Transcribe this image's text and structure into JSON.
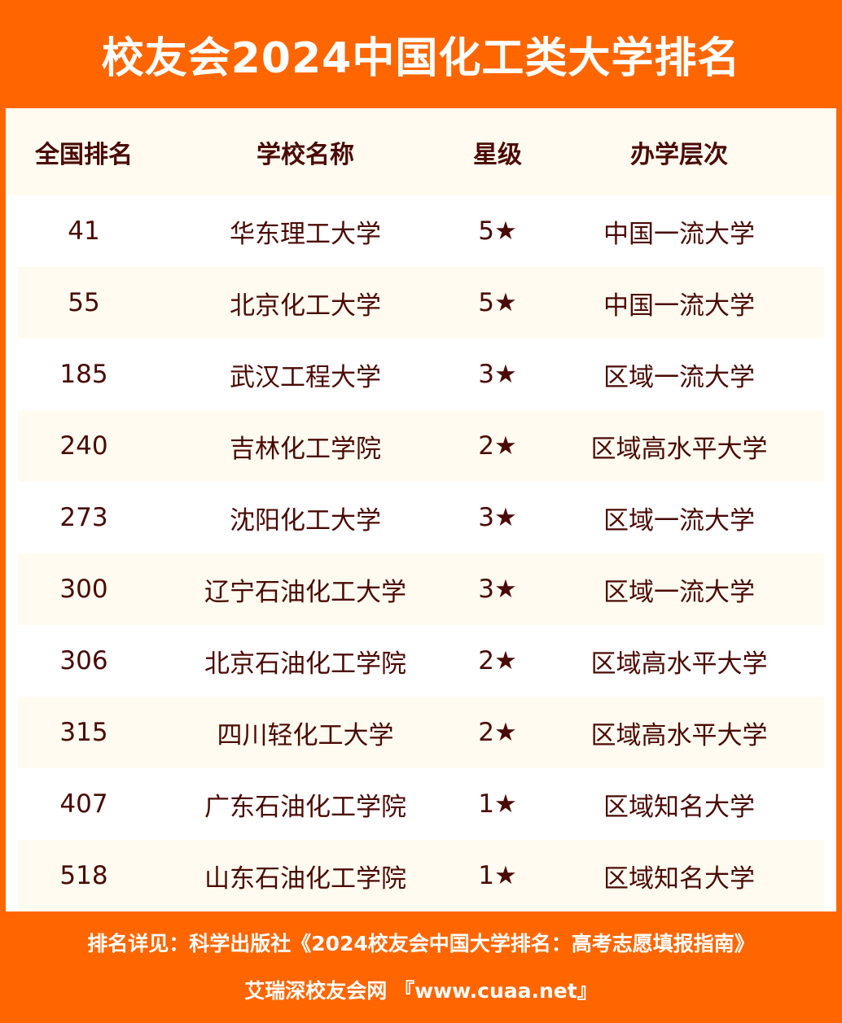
{
  "title": "校友会2024中国化工类大学排名",
  "headers": [
    "全国排名",
    "学校名称",
    "星级",
    "办学层次"
  ],
  "rows": [
    [
      "41",
      "华东理工大学",
      "5★",
      "中国一流大学"
    ],
    [
      "55",
      "北京化工大学",
      "5★",
      "中国一流大学"
    ],
    [
      "185",
      "武汉工程大学",
      "3★",
      "区域一流大学"
    ],
    [
      "240",
      "吉林化工学院",
      "2★",
      "区域高水平大学"
    ],
    [
      "273",
      "沈阳化工大学",
      "3★",
      "区域一流大学"
    ],
    [
      "300",
      "辽宁石油化工大学",
      "3★",
      "区域一流大学"
    ],
    [
      "306",
      "北京石油化工学院",
      "2★",
      "区域高水平大学"
    ],
    [
      "315",
      "四川轻化工大学",
      "2★",
      "区域高水平大学"
    ],
    [
      "407",
      "广东石油化工学院",
      "1★",
      "区域知名大学"
    ],
    [
      "518",
      "山东石油化工学院",
      "1★",
      "区域知名大学"
    ]
  ],
  "footer": {
    "source": "排名详见：科学出版社《2024校友会中国大学排名：高考志愿填报指南》",
    "site": "艾瑞深校友会网 『www.cuaa.net』"
  },
  "colors": {
    "accent": "#ff6600",
    "text": "#4a0a05",
    "stripe": "#fffbf0"
  }
}
